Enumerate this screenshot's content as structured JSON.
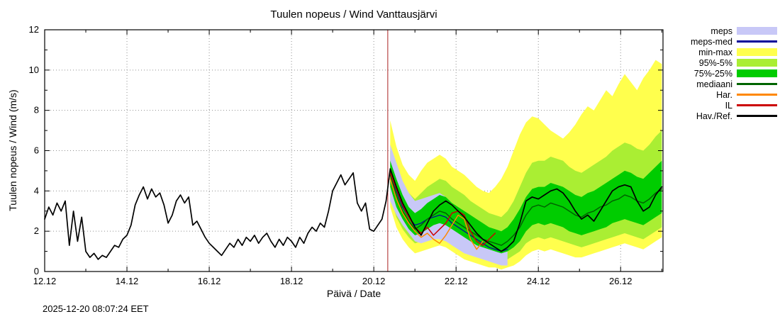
{
  "chart_data": {
    "type": "line",
    "title": "Tuulen nopeus / Wind  Vanttausjärvi",
    "xlabel": "Päivä / Date",
    "ylabel": "Tuulen nopeus / Wind (m/s)",
    "timestamp": "2025-12-20 08:07:24 EET",
    "xlim": [
      12.0,
      27.03
    ],
    "ylim": [
      0,
      12
    ],
    "grid": true,
    "x_ticks": [
      {
        "v": 12,
        "label": "12.12"
      },
      {
        "v": 14,
        "label": "14.12"
      },
      {
        "v": 16,
        "label": "16.12"
      },
      {
        "v": 18,
        "label": "18.12"
      },
      {
        "v": 20,
        "label": "20.12"
      },
      {
        "v": 22,
        "label": "22.12"
      },
      {
        "v": 24,
        "label": "24.12"
      },
      {
        "v": 26,
        "label": "26.12"
      }
    ],
    "y_ticks": [
      0,
      2,
      4,
      6,
      8,
      10,
      12
    ],
    "now_line": {
      "x": 20.34,
      "color": "#aa2222"
    },
    "bands": [
      {
        "name": "min-max",
        "color": "#ffff4d",
        "x": [
          20.4,
          20.55,
          20.7,
          20.85,
          21.0,
          21.15,
          21.3,
          21.45,
          21.6,
          21.75,
          21.9,
          22.05,
          22.2,
          22.35,
          22.5,
          22.65,
          22.8,
          22.95,
          23.1,
          23.25,
          23.4,
          23.55,
          23.7,
          23.85,
          24.0,
          24.15,
          24.3,
          24.45,
          24.6,
          24.75,
          24.9,
          25.05,
          25.2,
          25.35,
          25.5,
          25.65,
          25.8,
          25.95,
          26.1,
          26.25,
          26.4,
          26.55,
          26.7,
          26.85,
          27.0
        ],
        "lo": [
          3.2,
          2.2,
          1.6,
          1.2,
          0.9,
          1.0,
          1.1,
          1.2,
          1.3,
          1.2,
          1.0,
          0.8,
          0.6,
          0.5,
          0.4,
          0.3,
          0.2,
          0.2,
          0.1,
          0.2,
          0.3,
          0.5,
          0.8,
          1.0,
          1.1,
          1.0,
          1.1,
          1.0,
          0.9,
          0.8,
          0.7,
          0.7,
          0.8,
          0.9,
          1.0,
          1.1,
          1.2,
          1.3,
          1.4,
          1.3,
          1.2,
          1.1,
          1.3,
          1.5,
          1.7
        ],
        "hi": [
          7.5,
          6.2,
          5.3,
          4.8,
          4.5,
          5.0,
          5.4,
          5.6,
          5.8,
          5.6,
          5.2,
          5.0,
          4.8,
          4.5,
          4.2,
          4.0,
          3.9,
          4.2,
          4.6,
          5.2,
          6.0,
          6.8,
          7.4,
          7.7,
          7.6,
          7.3,
          7.0,
          6.8,
          6.6,
          6.9,
          7.3,
          7.8,
          8.2,
          8.0,
          8.5,
          9.0,
          8.7,
          9.3,
          9.8,
          9.4,
          9.0,
          9.6,
          10.0,
          10.5,
          10.3
        ]
      },
      {
        "name": "95%-5%",
        "color": "#aaee33",
        "x": [
          20.4,
          20.55,
          20.7,
          20.85,
          21.0,
          21.15,
          21.3,
          21.45,
          21.6,
          21.75,
          21.9,
          22.05,
          22.2,
          22.35,
          22.5,
          22.65,
          22.8,
          22.95,
          23.1,
          23.25,
          23.4,
          23.55,
          23.7,
          23.85,
          24.0,
          24.15,
          24.3,
          24.45,
          24.6,
          24.75,
          24.9,
          25.05,
          25.2,
          25.35,
          25.5,
          25.65,
          25.8,
          25.95,
          26.1,
          26.25,
          26.4,
          26.55,
          26.7,
          26.85,
          27.0
        ],
        "lo": [
          3.8,
          2.7,
          2.1,
          1.7,
          1.4,
          1.5,
          1.6,
          1.8,
          1.9,
          1.8,
          1.6,
          1.4,
          1.2,
          1.0,
          0.9,
          0.8,
          0.7,
          0.6,
          0.5,
          0.6,
          0.8,
          1.0,
          1.4,
          1.6,
          1.7,
          1.6,
          1.7,
          1.6,
          1.5,
          1.4,
          1.3,
          1.2,
          1.3,
          1.4,
          1.5,
          1.6,
          1.7,
          1.8,
          1.9,
          1.8,
          1.7,
          1.6,
          1.8,
          2.0,
          2.2
        ],
        "hi": [
          6.0,
          5.2,
          4.4,
          3.9,
          3.6,
          3.9,
          4.2,
          4.4,
          4.6,
          4.5,
          4.2,
          4.0,
          3.8,
          3.5,
          3.3,
          3.1,
          2.9,
          2.8,
          2.7,
          3.0,
          3.5,
          4.2,
          4.9,
          5.4,
          5.5,
          5.5,
          5.7,
          5.6,
          5.5,
          5.2,
          5.0,
          4.9,
          5.1,
          5.3,
          5.5,
          5.7,
          6.0,
          6.2,
          6.4,
          6.3,
          6.1,
          6.0,
          6.3,
          6.7,
          7.0
        ]
      },
      {
        "name": "meps",
        "color": "#c8c8f7",
        "x": [
          20.4,
          20.55,
          20.7,
          20.85,
          21.0,
          21.15,
          21.3,
          21.45,
          21.6,
          21.75,
          21.9,
          22.05,
          22.2,
          22.35,
          22.5,
          22.65,
          22.8,
          22.95,
          23.1,
          23.25
        ],
        "lo": [
          3.5,
          2.8,
          2.3,
          1.9,
          1.5,
          1.4,
          1.5,
          1.6,
          1.6,
          1.5,
          1.3,
          1.1,
          0.9,
          0.8,
          0.7,
          0.6,
          0.5,
          0.4,
          0.3,
          0.3
        ],
        "hi": [
          6.3,
          5.4,
          4.5,
          3.9,
          3.5,
          3.6,
          3.7,
          3.8,
          3.9,
          3.7,
          3.4,
          3.1,
          2.8,
          2.5,
          2.2,
          2.0,
          1.8,
          1.6,
          1.5,
          1.4
        ]
      },
      {
        "name": "75%-25%",
        "color": "#00cc00",
        "x": [
          20.4,
          20.55,
          20.7,
          20.85,
          21.0,
          21.15,
          21.3,
          21.45,
          21.6,
          21.75,
          21.9,
          22.05,
          22.2,
          22.35,
          22.5,
          22.65,
          22.8,
          22.95,
          23.1,
          23.25,
          23.4,
          23.55,
          23.7,
          23.85,
          24.0,
          24.15,
          24.3,
          24.45,
          24.6,
          24.75,
          24.9,
          25.05,
          25.2,
          25.35,
          25.5,
          25.65,
          25.8,
          25.95,
          26.1,
          26.25,
          26.4,
          26.55,
          26.7,
          26.85,
          27.0
        ],
        "lo": [
          4.2,
          3.2,
          2.6,
          2.1,
          1.8,
          1.9,
          2.1,
          2.3,
          2.4,
          2.3,
          2.1,
          1.9,
          1.7,
          1.5,
          1.3,
          1.2,
          1.1,
          1.0,
          0.9,
          1.0,
          1.2,
          1.5,
          2.0,
          2.3,
          2.4,
          2.3,
          2.4,
          2.3,
          2.2,
          2.0,
          1.9,
          1.8,
          1.9,
          2.0,
          2.1,
          2.2,
          2.4,
          2.5,
          2.6,
          2.5,
          2.4,
          2.3,
          2.5,
          2.7,
          2.9
        ],
        "hi": [
          5.5,
          4.6,
          3.8,
          3.2,
          2.9,
          3.1,
          3.4,
          3.6,
          3.8,
          3.7,
          3.4,
          3.2,
          3.0,
          2.8,
          2.6,
          2.4,
          2.2,
          2.1,
          2.0,
          2.2,
          2.6,
          3.1,
          3.7,
          4.1,
          4.2,
          4.2,
          4.4,
          4.3,
          4.2,
          4.0,
          3.8,
          3.7,
          3.9,
          4.0,
          4.2,
          4.4,
          4.6,
          4.8,
          5.0,
          4.9,
          4.7,
          4.6,
          4.9,
          5.2,
          5.5
        ]
      }
    ],
    "lines": [
      {
        "name": "meps-med",
        "color": "#000099",
        "width": 1.2,
        "x": [
          20.4,
          20.55,
          20.7,
          20.85,
          21.0,
          21.15,
          21.3,
          21.45,
          21.6,
          21.75,
          21.9,
          22.05,
          22.2,
          22.35,
          22.5,
          22.65,
          22.8,
          22.95,
          23.1,
          23.25
        ],
        "y": [
          4.9,
          4.0,
          3.2,
          2.7,
          2.3,
          2.4,
          2.6,
          2.7,
          2.8,
          2.7,
          2.4,
          2.2,
          2.0,
          1.8,
          1.6,
          1.4,
          1.2,
          1.1,
          1.0,
          1.1
        ]
      },
      {
        "name": "mediaani",
        "color": "#006400",
        "width": 1.5,
        "x": [
          20.4,
          20.55,
          20.7,
          20.85,
          21.0,
          21.15,
          21.3,
          21.45,
          21.6,
          21.75,
          21.9,
          22.05,
          22.2,
          22.35,
          22.5,
          22.65,
          22.8,
          22.95,
          23.1,
          23.25,
          23.4,
          23.55,
          23.7,
          23.85,
          24.0,
          24.15,
          24.3,
          24.45,
          24.6,
          24.75,
          24.9,
          25.05,
          25.2,
          25.35,
          25.5,
          25.65,
          25.8,
          25.95,
          26.1,
          26.25,
          26.4,
          26.55,
          26.7,
          26.85,
          27.0
        ],
        "y": [
          4.8,
          3.8,
          3.0,
          2.5,
          2.1,
          2.3,
          2.6,
          2.8,
          3.0,
          2.9,
          2.6,
          2.4,
          2.2,
          2.0,
          1.8,
          1.6,
          1.5,
          1.4,
          1.3,
          1.5,
          1.8,
          2.2,
          2.8,
          3.2,
          3.3,
          3.2,
          3.4,
          3.3,
          3.2,
          3.0,
          2.8,
          2.7,
          2.9,
          3.0,
          3.2,
          3.3,
          3.5,
          3.6,
          3.8,
          3.7,
          3.5,
          3.4,
          3.6,
          3.9,
          4.1
        ]
      },
      {
        "name": "Har.",
        "color": "#ff8800",
        "width": 1.5,
        "x": [
          20.4,
          20.55,
          20.7,
          20.85,
          21.0,
          21.15,
          21.3,
          21.45,
          21.6,
          21.75,
          21.9,
          22.05,
          22.2,
          22.35,
          22.5,
          22.65
        ],
        "y": [
          4.6,
          3.6,
          2.9,
          2.4,
          2.0,
          1.7,
          1.9,
          1.6,
          1.4,
          1.8,
          2.3,
          2.8,
          2.6,
          1.6,
          1.1,
          1.5
        ]
      },
      {
        "name": "IL",
        "color": "#cc0000",
        "width": 1.5,
        "x": [
          20.4,
          20.55,
          20.7,
          20.85,
          21.0,
          21.15,
          21.3,
          21.45,
          21.6,
          21.75,
          21.9,
          22.05,
          22.2,
          22.35,
          22.5,
          22.65,
          22.8,
          22.95
        ],
        "y": [
          4.9,
          4.1,
          3.3,
          2.7,
          2.2,
          1.9,
          2.2,
          1.8,
          2.1,
          2.4,
          2.9,
          3.0,
          2.8,
          2.0,
          1.5,
          1.3,
          1.6,
          1.9
        ]
      },
      {
        "name": "Hav./Ref.",
        "color": "#000000",
        "width": 1.7,
        "x": [
          12.0,
          12.1,
          12.2,
          12.3,
          12.4,
          12.5,
          12.6,
          12.7,
          12.8,
          12.9,
          13.0,
          13.1,
          13.2,
          13.3,
          13.4,
          13.5,
          13.6,
          13.7,
          13.8,
          13.9,
          14.0,
          14.1,
          14.2,
          14.3,
          14.4,
          14.5,
          14.6,
          14.7,
          14.8,
          14.9,
          15.0,
          15.1,
          15.2,
          15.3,
          15.4,
          15.5,
          15.6,
          15.7,
          15.8,
          15.9,
          16.0,
          16.1,
          16.2,
          16.3,
          16.4,
          16.5,
          16.6,
          16.7,
          16.8,
          16.9,
          17.0,
          17.1,
          17.2,
          17.3,
          17.4,
          17.5,
          17.6,
          17.7,
          17.8,
          17.9,
          18.0,
          18.1,
          18.2,
          18.3,
          18.4,
          18.5,
          18.6,
          18.7,
          18.8,
          18.9,
          19.0,
          19.1,
          19.2,
          19.3,
          19.4,
          19.5,
          19.6,
          19.7,
          19.8,
          19.9,
          20.0,
          20.1,
          20.2,
          20.3,
          20.4,
          20.55,
          20.7,
          20.85,
          21.0,
          21.15,
          21.3,
          21.45,
          21.6,
          21.75,
          21.9,
          22.05,
          22.2,
          22.35,
          22.5,
          22.65,
          22.8,
          22.95,
          23.1,
          23.25,
          23.4,
          23.55,
          23.7,
          23.85,
          24.0,
          24.15,
          24.3,
          24.45,
          24.6,
          24.75,
          24.9,
          25.05,
          25.2,
          25.35,
          25.5,
          25.65,
          25.8,
          25.95,
          26.1,
          26.25,
          26.4,
          26.55,
          26.7,
          26.85,
          27.0
        ],
        "y": [
          2.6,
          3.2,
          2.8,
          3.4,
          3.0,
          3.5,
          1.3,
          3.0,
          1.5,
          2.7,
          1.0,
          0.7,
          0.9,
          0.6,
          0.8,
          0.7,
          1.0,
          1.3,
          1.2,
          1.6,
          1.8,
          2.3,
          3.3,
          3.8,
          4.2,
          3.6,
          4.1,
          3.7,
          3.9,
          3.3,
          2.4,
          2.8,
          3.5,
          3.8,
          3.4,
          3.7,
          2.3,
          2.5,
          2.1,
          1.7,
          1.4,
          1.2,
          1.0,
          0.8,
          1.1,
          1.4,
          1.2,
          1.6,
          1.3,
          1.7,
          1.5,
          1.8,
          1.4,
          1.7,
          1.9,
          1.5,
          1.2,
          1.6,
          1.3,
          1.7,
          1.5,
          1.2,
          1.7,
          1.4,
          1.9,
          2.2,
          2.0,
          2.4,
          2.2,
          3.0,
          4.0,
          4.4,
          4.8,
          4.3,
          4.6,
          4.9,
          3.4,
          3.0,
          3.4,
          2.1,
          2.0,
          2.3,
          2.6,
          3.5,
          5.1,
          4.2,
          3.4,
          2.8,
          2.2,
          1.8,
          2.4,
          3.0,
          3.3,
          3.5,
          3.3,
          3.0,
          2.7,
          2.3,
          1.9,
          1.6,
          1.4,
          1.2,
          1.0,
          1.2,
          1.5,
          2.4,
          3.5,
          3.7,
          3.6,
          3.8,
          4.0,
          4.1,
          3.9,
          3.5,
          3.0,
          2.6,
          2.8,
          2.5,
          3.0,
          3.5,
          4.0,
          4.2,
          4.3,
          4.2,
          3.5,
          3.0,
          3.2,
          3.8,
          4.2
        ]
      }
    ],
    "legend": [
      {
        "label": "meps",
        "type": "band",
        "color": "#c8c8f7"
      },
      {
        "label": "meps-med",
        "type": "line",
        "color": "#000099"
      },
      {
        "label": "min-max",
        "type": "band",
        "color": "#ffff4d"
      },
      {
        "label": "95%-5%",
        "type": "band",
        "color": "#aaee33"
      },
      {
        "label": "75%-25%",
        "type": "band",
        "color": "#00cc00"
      },
      {
        "label": "mediaani",
        "type": "line",
        "color": "#006400"
      },
      {
        "label": "Har.",
        "type": "line",
        "color": "#ff8800"
      },
      {
        "label": "IL",
        "type": "line",
        "color": "#cc0000"
      },
      {
        "label": "Hav./Ref.",
        "type": "line",
        "color": "#000000"
      }
    ]
  }
}
